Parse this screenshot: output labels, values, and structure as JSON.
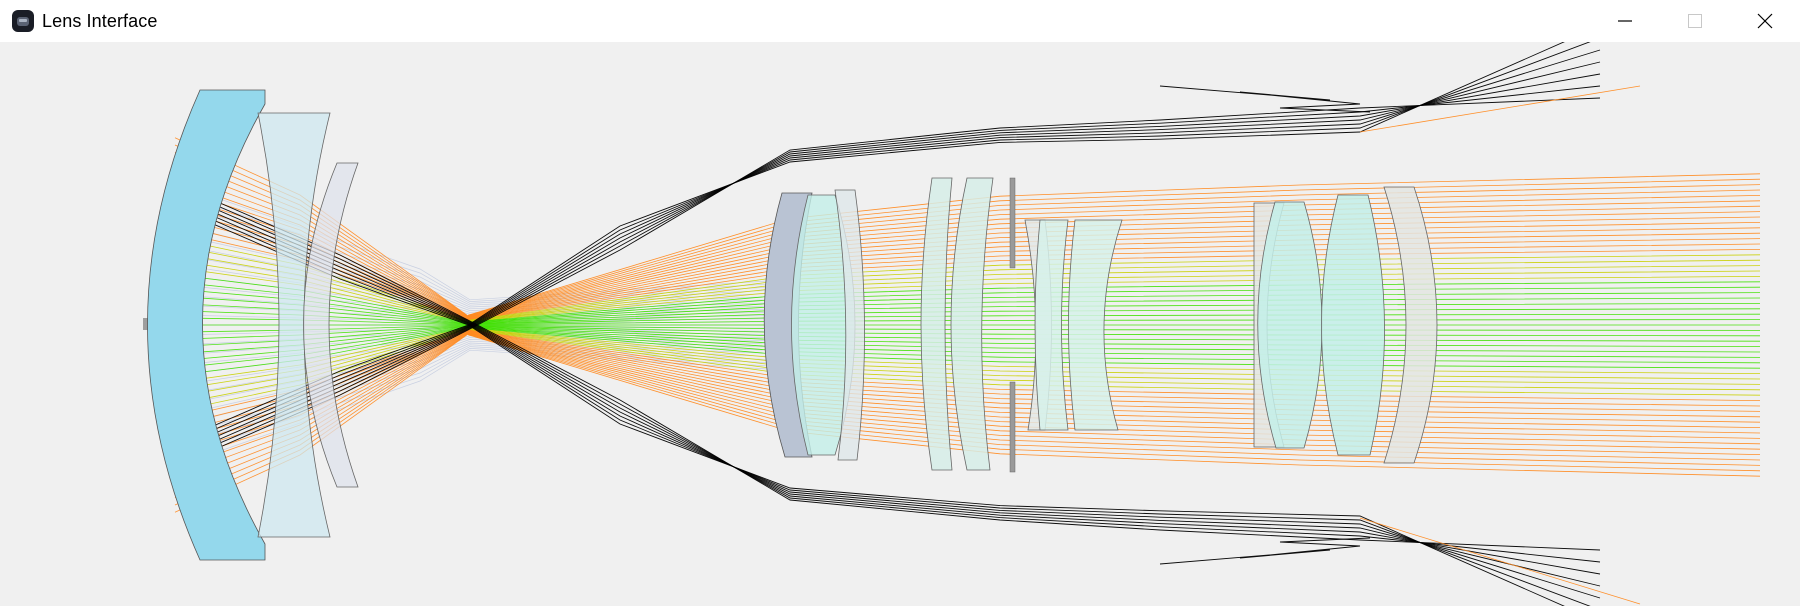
{
  "window": {
    "title": "Lens Interface"
  },
  "icons": {
    "app": "app-icon",
    "minimize": "minimize-icon",
    "maximize": "maximize-icon",
    "close": "close-icon"
  },
  "colors": {
    "canvas_background": "#f0f0f0",
    "lens_blue": "#94d8ec",
    "lens_pale_blue": "#cfe8f0",
    "lens_gray": "#c0c6d2",
    "lens_cyan": "#c3efe9",
    "ray_green": "#3fe000",
    "ray_yellow": "#c8d000",
    "ray_orange": "#ff8a20",
    "ray_black": "#000000",
    "ray_lavender": "#b8c2dc"
  }
}
